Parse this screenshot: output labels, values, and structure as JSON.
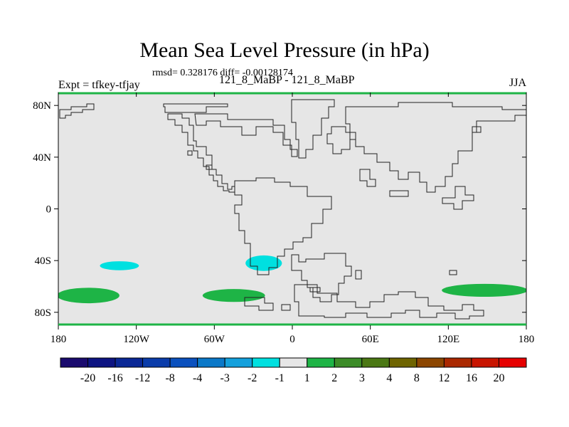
{
  "header": {
    "title": "Mean Sea Level Pressure (in hPa)",
    "stats": "rmsd= 0.328176 diff= -0.00128174",
    "left_label": "Expt = tfkey-tfjay",
    "center_label": "121_8_MaBP - 121_8_MaBP",
    "right_label": "JJA"
  },
  "chart_data": {
    "type": "heatmap",
    "title": "Mean Sea Level Pressure (in hPa)",
    "units": "hPa",
    "x_ticks": [
      {
        "lon": -180,
        "label": "180"
      },
      {
        "lon": -120,
        "label": "120W"
      },
      {
        "lon": -60,
        "label": "60W"
      },
      {
        "lon": 0,
        "label": "0"
      },
      {
        "lon": 60,
        "label": "60E"
      },
      {
        "lon": 120,
        "label": "120E"
      },
      {
        "lon": 180,
        "label": "180"
      }
    ],
    "y_ticks": [
      {
        "lat": 80,
        "label": "80N"
      },
      {
        "lat": 40,
        "label": "40N"
      },
      {
        "lat": 0,
        "label": "0"
      },
      {
        "lat": -40,
        "label": "40S"
      },
      {
        "lat": -80,
        "label": "80S"
      }
    ],
    "xlim": [
      -180,
      180
    ],
    "ylim": [
      -90,
      90
    ],
    "background_color": "#e6e6e6",
    "regions": [
      {
        "label": "-2 to -1",
        "color": "#00e0e0",
        "center_lon": -133,
        "center_lat": -44,
        "half_lon": 15,
        "half_lat": 3.5
      },
      {
        "label": "-2 to -1",
        "color": "#00e0e0",
        "center_lon": -22,
        "center_lat": -42,
        "half_lon": 14,
        "half_lat": 6
      },
      {
        "label": "1 to 2",
        "color": "#1eb446",
        "center_lon": -157,
        "center_lat": -67,
        "half_lon": 24,
        "half_lat": 6
      },
      {
        "label": "1 to 2",
        "color": "#1eb446",
        "center_lon": -45,
        "center_lat": -67,
        "half_lon": 24,
        "half_lat": 5
      },
      {
        "label": "1 to 2",
        "color": "#1eb446",
        "center_lon": 148,
        "center_lat": -63,
        "half_lon": 33,
        "half_lat": 5
      }
    ],
    "colorbar": {
      "labels": [
        "-20",
        "-16",
        "-12",
        "-8",
        "-4",
        "-3",
        "-2",
        "-1",
        "1",
        "2",
        "3",
        "4",
        "8",
        "12",
        "16",
        "20"
      ],
      "colors": [
        "#1a0a6e",
        "#0d1482",
        "#0a2896",
        "#0a3caa",
        "#0a50be",
        "#0a78c8",
        "#14a0dc",
        "#00e0e0",
        "#e6e6e6",
        "#1eb446",
        "#3c8c28",
        "#4b7814",
        "#6e6400",
        "#8c4600",
        "#aa2800",
        "#c81400",
        "#e60000"
      ]
    }
  }
}
